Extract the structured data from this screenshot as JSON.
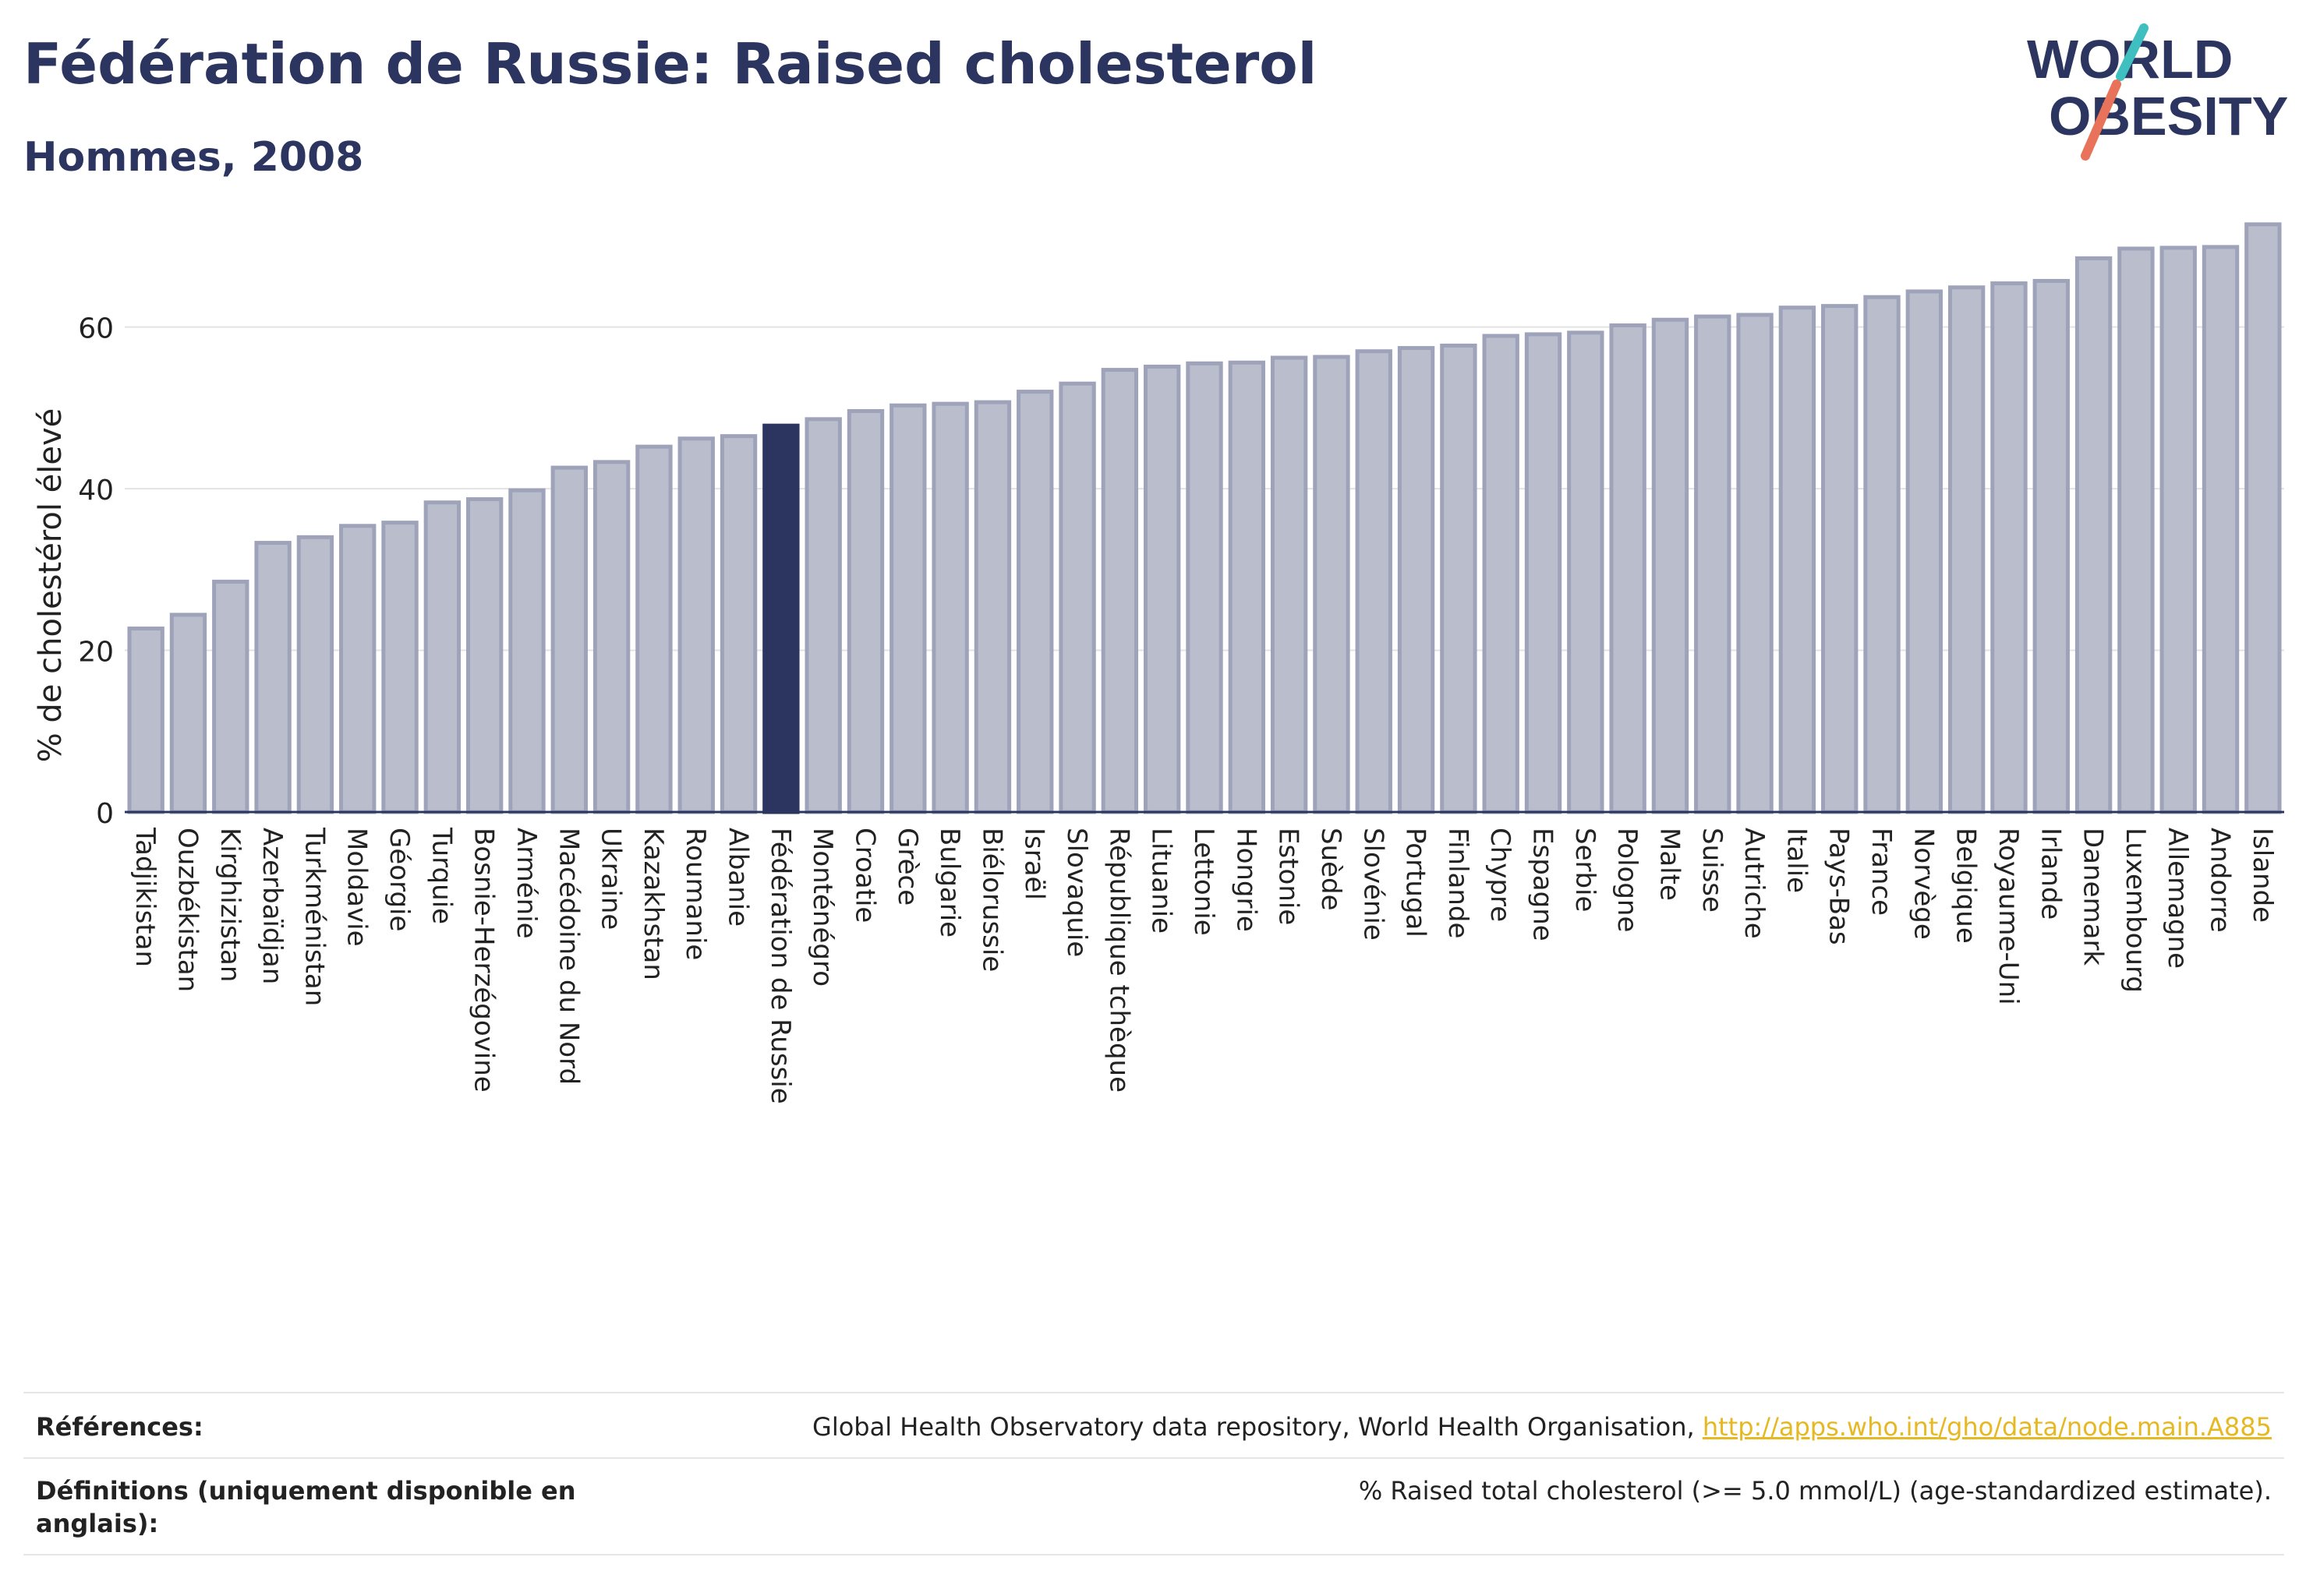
{
  "header": {
    "title": "Fédération de Russie: Raised cholesterol",
    "subtitle": "Hommes, 2008"
  },
  "logo": {
    "line1": "WORLD",
    "line2": "OBESITY"
  },
  "chart_data": {
    "type": "bar",
    "ylabel": "% de cholestérol élevé",
    "xlabel": "",
    "ylim": [
      0,
      75
    ],
    "yticks": [
      0,
      20,
      40,
      60
    ],
    "grid": true,
    "highlight": "Fédération de Russie",
    "colors": {
      "bar": "#babdcc",
      "bar_border": "#9ea3ba",
      "highlight": "#2b3560"
    },
    "categories": [
      "Tadjikistan",
      "Ouzbékistan",
      "Kirghizistan",
      "Azerbaïdjan",
      "Turkménistan",
      "Moldavie",
      "Géorgie",
      "Turquie",
      "Bosnie-Herzégovine",
      "Arménie",
      "Macédoine du Nord",
      "Ukraine",
      "Kazakhstan",
      "Roumanie",
      "Albanie",
      "Fédération de Russie",
      "Monténégro",
      "Croatie",
      "Grèce",
      "Bulgarie",
      "Biélorussie",
      "Israël",
      "Slovaquie",
      "République tchèque",
      "Lituanie",
      "Lettonie",
      "Hongrie",
      "Estonie",
      "Suède",
      "Slovénie",
      "Portugal",
      "Finlande",
      "Chypre",
      "Espagne",
      "Serbie",
      "Pologne",
      "Malte",
      "Suisse",
      "Autriche",
      "Italie",
      "Pays-Bas",
      "France",
      "Norvège",
      "Belgique",
      "Royaume-Uni",
      "Irlande",
      "Danemark",
      "Luxembourg",
      "Allemagne",
      "Andorre",
      "Islande"
    ],
    "values": [
      22.7,
      24.4,
      28.5,
      33.3,
      34.0,
      35.4,
      35.8,
      38.3,
      38.7,
      39.8,
      42.6,
      43.3,
      45.2,
      46.2,
      46.5,
      47.8,
      48.6,
      49.6,
      50.3,
      50.5,
      50.7,
      52.0,
      53.0,
      54.7,
      55.1,
      55.5,
      55.6,
      56.2,
      56.3,
      57.0,
      57.4,
      57.7,
      58.9,
      59.1,
      59.3,
      60.2,
      60.9,
      61.3,
      61.5,
      62.4,
      62.6,
      63.7,
      64.4,
      64.9,
      65.4,
      65.7,
      68.5,
      69.7,
      69.8,
      69.9,
      72.7
    ]
  },
  "footer": {
    "references_label": "Références:",
    "references_text": "Global Health Observatory data repository, World Health Organisation, ",
    "references_link": "http://apps.who.int/gho/data/node.main.A885",
    "definitions_label_line1": "Définitions (uniquement disponible en",
    "definitions_label_line2": "anglais):",
    "definitions_text": "% Raised total cholesterol (>= 5.0 mmol/L) (age-standardized estimate)."
  }
}
